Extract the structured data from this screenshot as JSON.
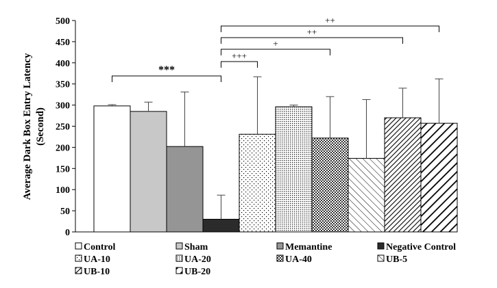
{
  "chart_data": {
    "type": "bar",
    "title": "",
    "xlabel": "",
    "ylabel_lines": [
      "Average Dark Box Entry Latency",
      "(Second)"
    ],
    "ylim": [
      0,
      500
    ],
    "yticks": [
      0,
      50,
      100,
      150,
      200,
      250,
      300,
      350,
      400,
      450,
      500
    ],
    "grid": false,
    "legend_position": "bottom",
    "categories": [
      "Control",
      "Sham",
      "Memantine",
      "Negative Control",
      "UA-10",
      "UA-20",
      "UA-40",
      "UB-5",
      "UB-10",
      "UB-20"
    ],
    "values": [
      298,
      285,
      202,
      30,
      231,
      296,
      222,
      174,
      270,
      257
    ],
    "error_upper": [
      301,
      307,
      331,
      87,
      367,
      300,
      320,
      313,
      340,
      362
    ],
    "fills": [
      "#ffffff",
      "#c8c8c8",
      "#959595",
      "#2b2b2b",
      "dots-sparse",
      "dots-dense",
      "checker",
      "diag-light",
      "diag-dense",
      "diag-bold"
    ],
    "significance": [
      {
        "label": "***",
        "from": "Control",
        "to": "Negative Control"
      },
      {
        "label": "+++",
        "from": "Negative Control",
        "to": "UA-10"
      },
      {
        "label": "+",
        "from": "Negative Control",
        "to": "UA-40"
      },
      {
        "label": "++",
        "from": "Negative Control",
        "to": "UB-10"
      },
      {
        "label": "++",
        "from": "Negative Control",
        "to": "UB-20"
      }
    ]
  }
}
